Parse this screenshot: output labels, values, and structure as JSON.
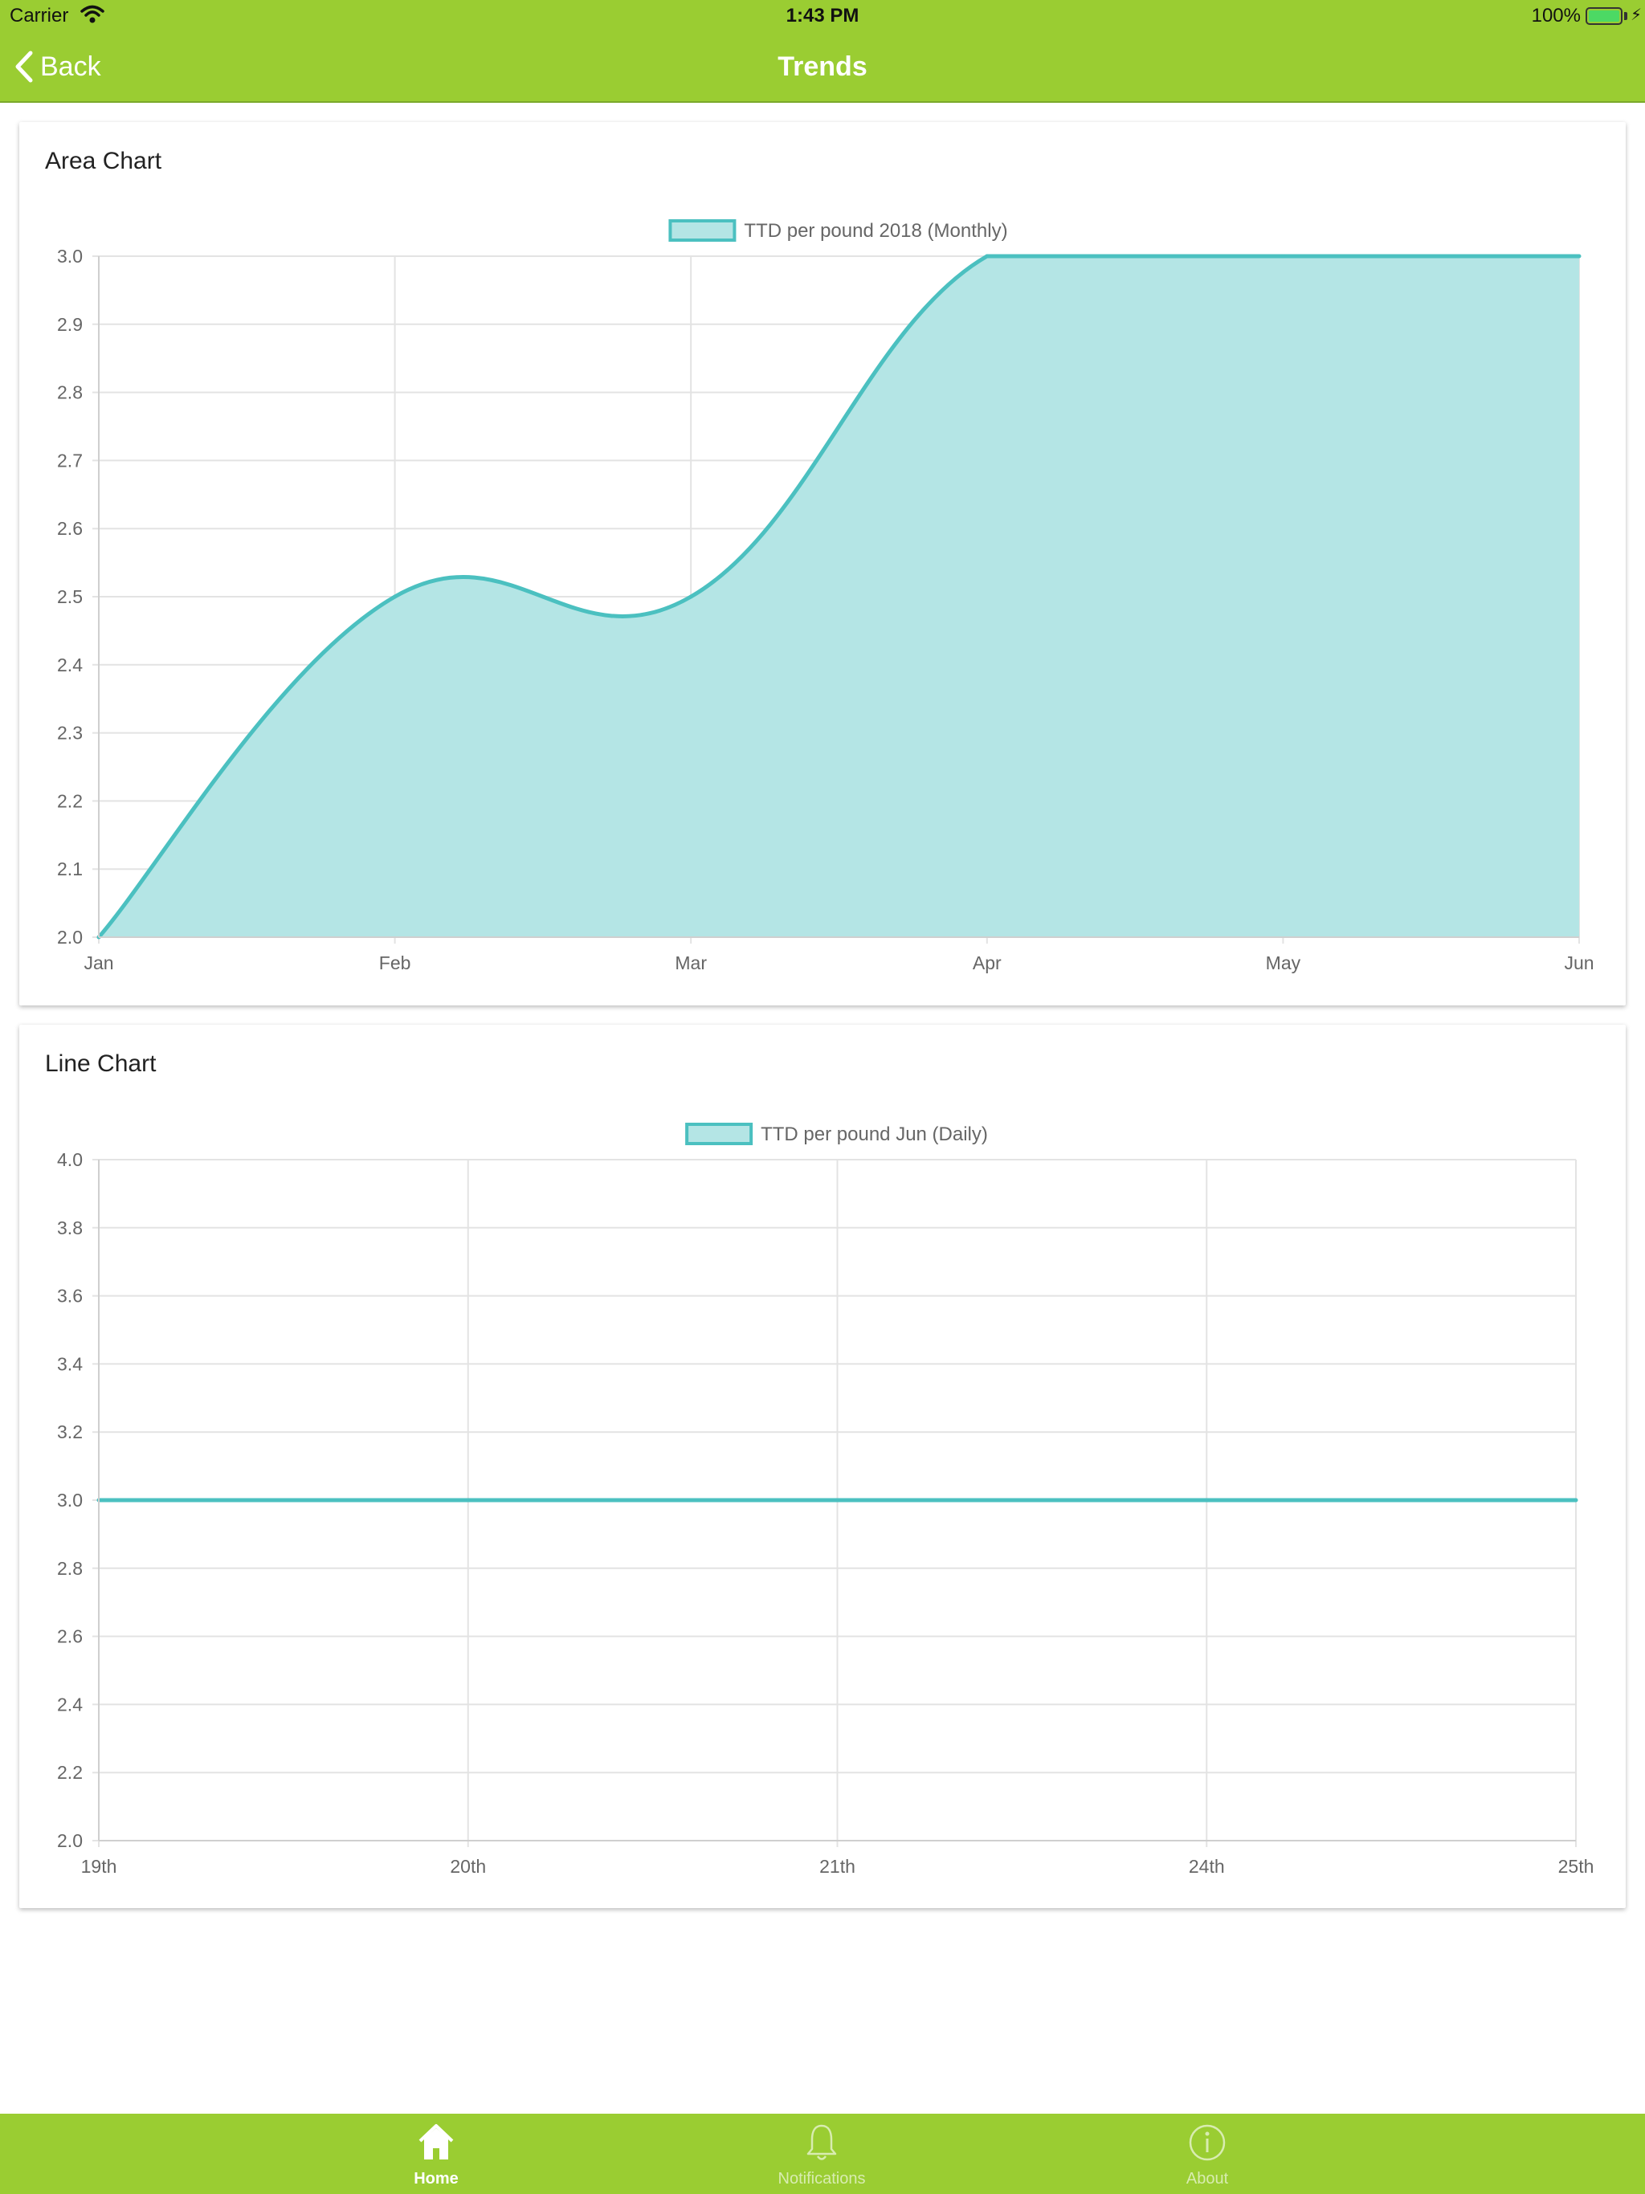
{
  "status_bar": {
    "carrier": "Carrier",
    "time": "1:43 PM",
    "battery": "100%"
  },
  "nav": {
    "back_label": "Back",
    "title": "Trends"
  },
  "colors": {
    "brand": "#9acd32",
    "series": "#4bc0c0",
    "series_fill": "#b4e5e5"
  },
  "cards": [
    {
      "title": "Area Chart"
    },
    {
      "title": "Line Chart"
    }
  ],
  "chart_data": [
    {
      "type": "area",
      "categories": [
        "Jan",
        "Feb",
        "Mar",
        "Apr",
        "May",
        "Jun"
      ],
      "series": [
        {
          "name": "TTD per pound 2018 (Monthly)",
          "values": [
            2.0,
            2.5,
            2.5,
            3.0,
            3.0,
            3.0
          ]
        }
      ],
      "ylim": [
        2.0,
        3.0
      ],
      "yticks": [
        3.0,
        2.9,
        2.8,
        2.7,
        2.6,
        2.5,
        2.4,
        2.3,
        2.2,
        2.1,
        2.0
      ],
      "grid": true,
      "legend": "top-center"
    },
    {
      "type": "line",
      "categories": [
        "19th",
        "20th",
        "21th",
        "24th",
        "25th"
      ],
      "series": [
        {
          "name": "TTD per pound Jun (Daily)",
          "values": [
            3.0,
            3.0,
            3.0,
            3.0,
            3.0
          ]
        }
      ],
      "ylim": [
        2.0,
        4.0
      ],
      "yticks": [
        4.0,
        3.8,
        3.6,
        3.4,
        3.2,
        3.0,
        2.8,
        2.6,
        2.4,
        2.2,
        2.0
      ],
      "grid": true,
      "legend": "top-center"
    }
  ],
  "tabs": [
    {
      "label": "Home",
      "icon": "home-icon",
      "active": true
    },
    {
      "label": "Notifications",
      "icon": "bell-icon",
      "active": false
    },
    {
      "label": "About",
      "icon": "info-icon",
      "active": false
    }
  ]
}
